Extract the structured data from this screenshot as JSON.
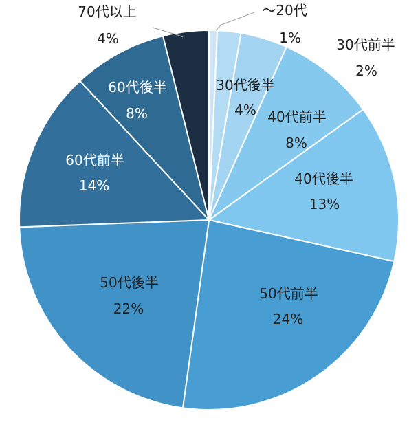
{
  "chart_data": {
    "type": "pie",
    "start_angle_deg": 0,
    "direction": "clockwise",
    "slices": [
      {
        "label": "〜20代",
        "value_label": "1%",
        "value": 0.7,
        "color": "#cfe5f5"
      },
      {
        "label": "30代前半",
        "value_label": "2%",
        "value": 2.0,
        "color": "#b3dcf4"
      },
      {
        "label": "30代後半",
        "value_label": "4%",
        "value": 4.0,
        "color": "#a3d4f2"
      },
      {
        "label": "40代前半",
        "value_label": "8%",
        "value": 8.4,
        "color": "#86c9ef"
      },
      {
        "label": "40代後半",
        "value_label": "13%",
        "value": 13.4,
        "color": "#80c7ef"
      },
      {
        "label": "50代前半",
        "value_label": "24%",
        "value": 23.7,
        "color": "#489ed3"
      },
      {
        "label": "50代後半",
        "value_label": "22%",
        "value": 22.2,
        "color": "#4192c7"
      },
      {
        "label": "60代前半",
        "value_label": "14%",
        "value": 13.7,
        "color": "#326f9b"
      },
      {
        "label": "60代後半",
        "value_label": "8%",
        "value": 8.0,
        "color": "#2f6a93"
      },
      {
        "label": "70代以上",
        "value_label": "4%",
        "value": 3.9,
        "color": "#1c2f42"
      }
    ]
  }
}
